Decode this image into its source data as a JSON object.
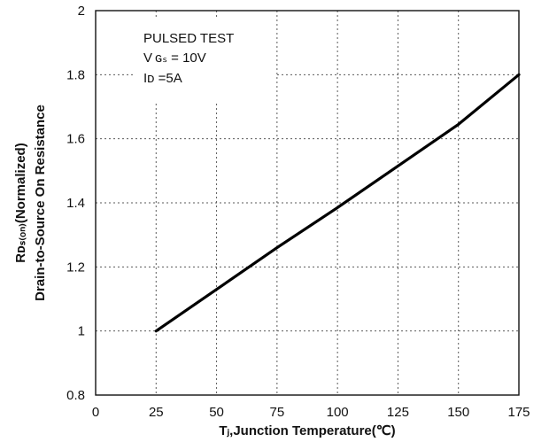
{
  "chart_data": {
    "type": "line",
    "title": "",
    "xlabel": "Tⱼ,Junction Temperature(℃)",
    "ylabel_line1": "Rᴅₛ₍ₒₙ₎(Normalized)",
    "ylabel_line2": "Drain-to-Source On Resistance",
    "xlim": [
      0,
      175
    ],
    "ylim": [
      0.8,
      2.0
    ],
    "x_ticks": [
      "0",
      "25",
      "50",
      "75",
      "100",
      "125",
      "150",
      "175"
    ],
    "y_ticks": [
      "0.8",
      "1",
      "1.2",
      "1.4",
      "1.6",
      "1.8",
      "2"
    ],
    "grid": true,
    "annotation": {
      "line1": "PULSED TEST",
      "line2": "V ɢₛ = 10V",
      "line3": "Iᴅ =5A"
    },
    "series": [
      {
        "x": [
          25,
          50,
          75,
          100,
          125,
          150,
          175
        ],
        "y": [
          1.0,
          1.13,
          1.26,
          1.385,
          1.515,
          1.645,
          1.8
        ]
      }
    ]
  }
}
